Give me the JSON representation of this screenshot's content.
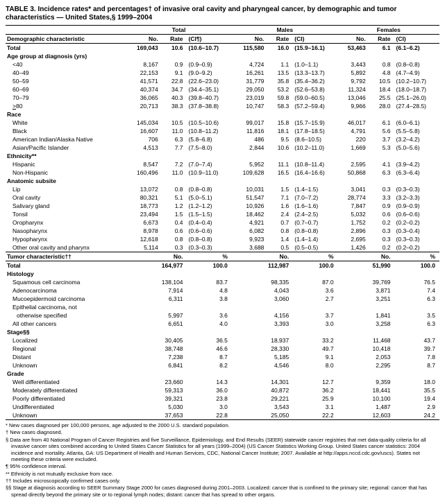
{
  "title": "TABLE 3. Incidence rates* and percentages† of invasive oral cavity and pharyngeal cancer, by demographic and tumor characteristics — United States,§ 1999–2004",
  "group_headers": [
    "Total",
    "Males",
    "Females"
  ],
  "col_headers": [
    "Demographic characteristic",
    "No.",
    "Rate",
    "(CI¶)",
    "No.",
    "Rate",
    "(CI)",
    "No.",
    "Rate",
    "(CI)"
  ],
  "rows": [
    {
      "t": "total",
      "label": "Total",
      "c": [
        "169,043",
        "10.6",
        "(10.6–10.7)",
        "115,580",
        "16.0",
        "(15.9–16.1)",
        "53,463",
        "6.1",
        "(6.1–6.2)"
      ]
    },
    {
      "t": "section",
      "label": "Age group at diagnosis (yrs)"
    },
    {
      "t": "data",
      "label": "<40",
      "c": [
        "8,167",
        "0.9",
        "(0.9–0.9)",
        "4,724",
        "1.1",
        "(1.0–1.1)",
        "3,443",
        "0.8",
        "(0.8–0.8)"
      ]
    },
    {
      "t": "data",
      "label": "40–49",
      "c": [
        "22,153",
        "9.1",
        "(9.0–9.2)",
        "16,261",
        "13.5",
        "(13.3–13.7)",
        "5,892",
        "4.8",
        "(4.7–4.9)"
      ]
    },
    {
      "t": "data",
      "label": "50–59",
      "c": [
        "41,571",
        "22.8",
        "(22.6–23.0)",
        "31,779",
        "35.8",
        "(35.4–36.2)",
        "9,792",
        "10.5",
        "(10.2–10.7)"
      ]
    },
    {
      "t": "data",
      "label": "60–69",
      "c": [
        "40,374",
        "34.7",
        "(34.4–35.1)",
        "29,050",
        "53.2",
        "(52.6–53.8)",
        "11,324",
        "18.4",
        "(18.0–18.7)"
      ]
    },
    {
      "t": "data",
      "label": "70–79",
      "c": [
        "36,065",
        "40.3",
        "(39.8–40.7)",
        "23,019",
        "59.8",
        "(59.0–60.5)",
        "13,046",
        "25.5",
        "(25.1–26.0)"
      ]
    },
    {
      "t": "data",
      "label": ">80",
      "u": true,
      "c": [
        "20,713",
        "38.3",
        "(37.8–38.8)",
        "10,747",
        "58.3",
        "(57.2–59.4)",
        "9,966",
        "28.0",
        "(27.4–28.5)"
      ]
    },
    {
      "t": "section",
      "label": "Race"
    },
    {
      "t": "data",
      "label": "White",
      "c": [
        "145,034",
        "10.5",
        "(10.5–10.6)",
        "99,017",
        "15.8",
        "(15.7–15.9)",
        "46,017",
        "6.1",
        "(6.0–6.1)"
      ]
    },
    {
      "t": "data",
      "label": "Black",
      "c": [
        "16,607",
        "11.0",
        "(10.8–11.2)",
        "11,816",
        "18.1",
        "(17.8–18.5)",
        "4,791",
        "5.6",
        "(5.5–5.8)"
      ]
    },
    {
      "t": "data",
      "label": "American Indian/Alaska Native",
      "c": [
        "706",
        "6.3",
        "(5.8–6.8)",
        "486",
        "9.5",
        "(8.6–10.5)",
        "220",
        "3.7",
        "(3.2–4.2)"
      ]
    },
    {
      "t": "data",
      "label": "Asian/Pacific Islander",
      "c": [
        "4,513",
        "7.7",
        "(7.5–8.0)",
        "2,844",
        "10.6",
        "(10.2–11.0)",
        "1,669",
        "5.3",
        "(5.0–5.6)"
      ]
    },
    {
      "t": "section",
      "label": "Ethnicity**"
    },
    {
      "t": "data",
      "label": "Hispanic",
      "c": [
        "8,547",
        "7.2",
        "(7.0–7.4)",
        "5,952",
        "11.1",
        "(10.8–11.4)",
        "2,595",
        "4.1",
        "(3.9–4.2)"
      ]
    },
    {
      "t": "data",
      "label": "Non-Hispanic",
      "c": [
        "160,496",
        "11.0",
        "(10.9–11.0)",
        "109,628",
        "16.5",
        "(16.4–16.6)",
        "50,868",
        "6.3",
        "(6.3–6.4)"
      ]
    },
    {
      "t": "section",
      "label": "Anatomic subsite"
    },
    {
      "t": "data",
      "label": "Lip",
      "c": [
        "13,072",
        "0.8",
        "(0.8–0.8)",
        "10,031",
        "1.5",
        "(1.4–1.5)",
        "3,041",
        "0.3",
        "(0.3–0.3)"
      ]
    },
    {
      "t": "data",
      "label": "Oral cavity",
      "c": [
        "80,321",
        "5.1",
        "(5.0–5.1)",
        "51,547",
        "7.1",
        "(7.0–7.2)",
        "28,774",
        "3.3",
        "(3.2–3.3)"
      ]
    },
    {
      "t": "data",
      "label": "Salivary gland",
      "c": [
        "18,773",
        "1.2",
        "(1.2–1.2)",
        "10,926",
        "1.6",
        "(1.6–1.6)",
        "7,847",
        "0.9",
        "(0.9–0.9)"
      ]
    },
    {
      "t": "data",
      "label": "Tonsil",
      "c": [
        "23,494",
        "1.5",
        "(1.5–1.5)",
        "18,462",
        "2.4",
        "(2.4–2.5)",
        "5,032",
        "0.6",
        "(0.6–0.6)"
      ]
    },
    {
      "t": "data",
      "label": "Oropharynx",
      "c": [
        "6,673",
        "0.4",
        "(0.4–0.4)",
        "4,921",
        "0.7",
        "(0.7–0.7)",
        "1,752",
        "0.2",
        "(0.2–0.2)"
      ]
    },
    {
      "t": "data",
      "label": "Nasopharynx",
      "c": [
        "8,978",
        "0.6",
        "(0.6–0.6)",
        "6,082",
        "0.8",
        "(0.8–0.8)",
        "2,896",
        "0.3",
        "(0.3–0.4)"
      ]
    },
    {
      "t": "data",
      "label": "Hypopharynx",
      "c": [
        "12,618",
        "0.8",
        "(0.8–0.8)",
        "9,923",
        "1.4",
        "(1.4–1.4)",
        "2,695",
        "0.3",
        "(0.3–0.3)"
      ]
    },
    {
      "t": "data",
      "label": "Other oral cavity and pharynx",
      "c": [
        "5,114",
        "0.3",
        "(0.3–0.3)",
        "3,688",
        "0.5",
        "(0.5–0.5)",
        "1,426",
        "0.2",
        "(0.2–0.2)"
      ]
    }
  ],
  "tumor_header": [
    "Tumor characteristic††",
    "No.",
    "%",
    "No.",
    "%",
    "No.",
    "%"
  ],
  "tumor_rows": [
    {
      "t": "total",
      "label": "Total",
      "c": [
        "164,977",
        "100.0",
        "112,987",
        "100.0",
        "51,990",
        "100.0"
      ]
    },
    {
      "t": "section",
      "label": "Histology"
    },
    {
      "t": "data",
      "label": "Squamous cell carcinoma",
      "c": [
        "138,104",
        "83.7",
        "98,335",
        "87.0",
        "39,769",
        "76.5"
      ]
    },
    {
      "t": "data",
      "label": "Adenocarcinoma",
      "c": [
        "7,914",
        "4.8",
        "4,043",
        "3.6",
        "3,871",
        "7.4"
      ]
    },
    {
      "t": "data",
      "label": "Mucoepidermoid carcinoma",
      "c": [
        "6,311",
        "3.8",
        "3,060",
        "2.7",
        "3,251",
        "6.3"
      ]
    },
    {
      "t": "data2",
      "label": "Epithelial carcinoma, not"
    },
    {
      "t": "data",
      "label": "otherwise specified",
      "indent": 2,
      "c": [
        "5,997",
        "3.6",
        "4,156",
        "3.7",
        "1,841",
        "3.5"
      ]
    },
    {
      "t": "data",
      "label": "All other cancers",
      "c": [
        "6,651",
        "4.0",
        "3,393",
        "3.0",
        "3,258",
        "6.3"
      ]
    },
    {
      "t": "section",
      "label": "Stage§§"
    },
    {
      "t": "data",
      "label": "Localized",
      "c": [
        "30,405",
        "36.5",
        "18,937",
        "33.2",
        "11,468",
        "43.7"
      ]
    },
    {
      "t": "data",
      "label": "Regional",
      "c": [
        "38,748",
        "46.6",
        "28,330",
        "49.7",
        "10,418",
        "39.7"
      ]
    },
    {
      "t": "data",
      "label": "Distant",
      "c": [
        "7,238",
        "8.7",
        "5,185",
        "9.1",
        "2,053",
        "7.8"
      ]
    },
    {
      "t": "data",
      "label": "Unknown",
      "c": [
        "6,841",
        "8.2",
        "4,546",
        "8.0",
        "2,295",
        "8.7"
      ]
    },
    {
      "t": "section",
      "label": "Grade"
    },
    {
      "t": "data",
      "label": "Well differentiated",
      "c": [
        "23,660",
        "14.3",
        "14,301",
        "12.7",
        "9,359",
        "18.0"
      ]
    },
    {
      "t": "data",
      "label": "Moderately differentiated",
      "c": [
        "59,313",
        "36.0",
        "40,872",
        "36.2",
        "18,441",
        "35.5"
      ]
    },
    {
      "t": "data",
      "label": "Poorly differentiated",
      "c": [
        "39,321",
        "23.8",
        "29,221",
        "25.9",
        "10,100",
        "19.4"
      ]
    },
    {
      "t": "data",
      "label": "Undifferentiated",
      "c": [
        "5,030",
        "3.0",
        "3,543",
        "3.1",
        "1,487",
        "2.9"
      ]
    },
    {
      "t": "data",
      "label": "Unknown",
      "c": [
        "37,653",
        "22.8",
        "25,050",
        "22.2",
        "12,603",
        "24.2"
      ]
    }
  ],
  "footnotes": [
    "* New cases diagnosed per 100,000 persons, age adjusted to the 2000 U.S. standard population.",
    "† New cases diagnosed.",
    "§ Data are from 40 National Program of Cancer Registries and five Surveillance, Epidemiology, and End Results (SEER) statewide cancer registries that met data-quality criteria for all invasive cancer sites combined according to United States Cancer Statistics for all years (1999–2004) (US Cancer Statistics Working Group. United States cancer statistics: 2004 incidence and mortality. Atlanta, GA: US Department of Health and Human Services, CDC, National Cancer Institute; 2007. Available at http://apps.nccd.cdc.gov/uscs). States not meeting these criteria were excluded.",
    "¶ 95% confidence interval.",
    "** Ethnicity is not mutually exclusive from race.",
    "†† Includes microscopically confirmed cases only.",
    "§§ Stage at diagnosis according to SEER Summary Stage 2000 for cases diagnosed during 2001–2003. Localized: cancer that is confined to the primary site; regional: cancer that has spread directly beyond the primary site or to regional lymph nodes; distant: cancer that has spread to other organs."
  ]
}
